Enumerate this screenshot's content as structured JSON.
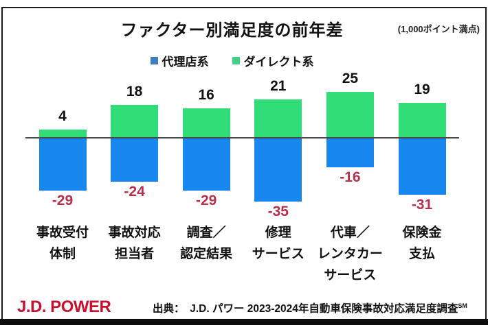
{
  "title": "ファクター別満足度の前年差",
  "note": "(1,000ポイント満点)",
  "legend": {
    "items": [
      {
        "label": "代理店系",
        "color": "#3d7fba"
      },
      {
        "label": "ダイレクト系",
        "color": "#45cf86"
      }
    ]
  },
  "chart_data": {
    "type": "bar",
    "title": "ファクター別満足度の前年差",
    "note": "(1,000ポイント満点)",
    "categories": [
      "事故受付\n体制",
      "事故対応\n担当者",
      "調査／\n認定結果",
      "修理\nサービス",
      "代車／\nレンタカー\nサービス",
      "保険金\n支払"
    ],
    "series": [
      {
        "name": "代理店系",
        "color": "#1787ef",
        "label_color": "#b5314c",
        "values": [
          -29,
          -24,
          -29,
          -35,
          -16,
          -31
        ]
      },
      {
        "name": "ダイレクト系",
        "color": "#31dd76",
        "label_color": "#111111",
        "values": [
          4,
          18,
          16,
          21,
          25,
          19
        ]
      }
    ],
    "baseline": 0,
    "ylim": [
      -40,
      30
    ],
    "grid": false,
    "legend_position": "top-center"
  },
  "footer": {
    "logo": "J.D. POWER",
    "source_text": "出典：　J.D. パワー 2023-2024年自動車保険事故対応満足度調査",
    "source_sup": "SM"
  }
}
